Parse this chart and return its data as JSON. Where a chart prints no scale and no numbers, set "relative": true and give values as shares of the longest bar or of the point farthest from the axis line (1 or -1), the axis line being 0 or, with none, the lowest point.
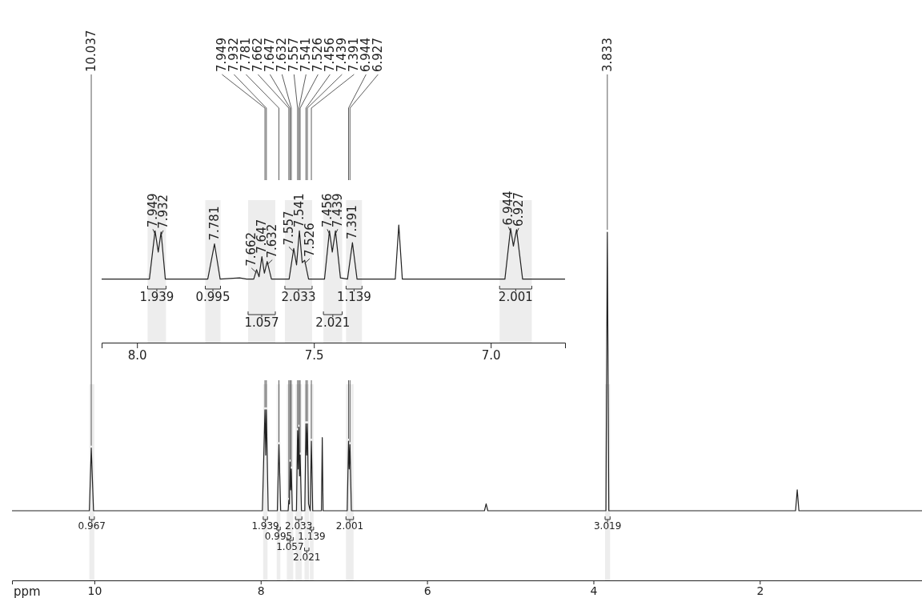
{
  "chart_data": [
    {
      "type": "line",
      "xlabel": "ppm",
      "relative": true,
      "color": "#222222",
      "xlim": [
        10.99,
        0.05
      ],
      "xticks": [
        10,
        8,
        6,
        4,
        2
      ],
      "x": [
        10.99,
        10.06,
        10.037,
        10.01,
        7.98,
        7.949,
        7.94,
        7.932,
        7.91,
        7.8,
        7.781,
        7.76,
        7.67,
        7.662,
        7.655,
        7.647,
        7.64,
        7.632,
        7.62,
        7.57,
        7.557,
        7.549,
        7.541,
        7.533,
        7.526,
        7.51,
        7.47,
        7.456,
        7.448,
        7.439,
        7.425,
        7.405,
        7.391,
        7.375,
        7.27,
        7.26,
        7.25,
        6.96,
        6.944,
        6.936,
        6.927,
        6.91,
        5.31,
        5.29,
        5.27,
        3.85,
        3.833,
        3.815,
        1.57,
        1.55,
        1.53,
        0.05
      ],
      "values": [
        0.2,
        0.2,
        0.38,
        0.2,
        0.2,
        0.49,
        0.36,
        0.49,
        0.2,
        0.2,
        0.39,
        0.2,
        0.2,
        0.23,
        0.22,
        0.34,
        0.26,
        0.32,
        0.2,
        0.2,
        0.43,
        0.32,
        0.44,
        0.3,
        0.36,
        0.2,
        0.2,
        0.45,
        0.36,
        0.45,
        0.22,
        0.2,
        0.4,
        0.2,
        0.2,
        0.41,
        0.2,
        0.2,
        0.4,
        0.32,
        0.39,
        0.2,
        0.2,
        0.22,
        0.2,
        0.2,
        1,
        0.2,
        0.2,
        0.26,
        0.2,
        0.2
      ],
      "annotations": [
        {
          "text": "10.037",
          "x": 10.037,
          "y": 0.38
        },
        {
          "text": "7.949",
          "x": 7.949,
          "y": 0.49
        },
        {
          "text": "7.932",
          "x": 7.932,
          "y": 0.49
        },
        {
          "text": "7.781",
          "x": 7.781,
          "y": 0.39
        },
        {
          "text": "7.662",
          "x": 7.662,
          "y": 0.23
        },
        {
          "text": "7.647",
          "x": 7.647,
          "y": 0.34
        },
        {
          "text": "7.632",
          "x": 7.632,
          "y": 0.32
        },
        {
          "text": "7.557",
          "x": 7.557,
          "y": 0.43
        },
        {
          "text": "7.541",
          "x": 7.541,
          "y": 0.44
        },
        {
          "text": "7.526",
          "x": 7.526,
          "y": 0.36
        },
        {
          "text": "7.456",
          "x": 7.456,
          "y": 0.45
        },
        {
          "text": "7.439",
          "x": 7.439,
          "y": 0.45
        },
        {
          "text": "7.391",
          "x": 7.391,
          "y": 0.4
        },
        {
          "text": "6.944",
          "x": 6.944,
          "y": 0.4
        },
        {
          "text": "6.927",
          "x": 6.927,
          "y": 0.39
        },
        {
          "text": "3.833",
          "x": 3.833,
          "y": 1
        }
      ],
      "bands": [
        {
          "axis": "x",
          "from": 10.06,
          "to": 10.0,
          "label": "0.967"
        },
        {
          "axis": "x",
          "from": 7.97,
          "to": 7.918,
          "label": "1.939"
        },
        {
          "axis": "x",
          "from": 7.807,
          "to": 7.764,
          "label": "0.995"
        },
        {
          "axis": "x",
          "from": 7.686,
          "to": 7.609,
          "label": "1.057"
        },
        {
          "axis": "x",
          "from": 7.582,
          "to": 7.505,
          "label": "2.033"
        },
        {
          "axis": "x",
          "from": 7.473,
          "to": 7.42,
          "label": "2.021"
        },
        {
          "axis": "x",
          "from": 7.409,
          "to": 7.364,
          "label": "1.139"
        },
        {
          "axis": "x",
          "from": 6.975,
          "to": 6.884,
          "label": "2.001"
        },
        {
          "axis": "x",
          "from": 3.86,
          "to": 3.8,
          "label": "3.019"
        }
      ]
    },
    {
      "type": "line",
      "relative": true,
      "color": "#222222",
      "xlim": [
        8.1,
        6.79
      ],
      "xticks": [
        {
          "value": 8.0,
          "label": "8.0"
        },
        7.5,
        {
          "value": 7.0,
          "label": "7.0"
        }
      ],
      "x": [
        8.1,
        7.965,
        7.949,
        7.94,
        7.932,
        7.92,
        7.8,
        7.781,
        7.765,
        7.71,
        7.69,
        7.67,
        7.662,
        7.655,
        7.647,
        7.64,
        7.632,
        7.62,
        7.57,
        7.557,
        7.549,
        7.541,
        7.533,
        7.526,
        7.515,
        7.47,
        7.456,
        7.448,
        7.439,
        7.425,
        7.405,
        7.391,
        7.378,
        7.27,
        7.26,
        7.25,
        6.96,
        6.944,
        6.936,
        6.927,
        6.91,
        6.79
      ],
      "values": [
        0.54,
        0.54,
        0.95,
        0.77,
        0.94,
        0.54,
        0.54,
        0.84,
        0.54,
        0.55,
        0.54,
        0.54,
        0.62,
        0.56,
        0.73,
        0.59,
        0.69,
        0.54,
        0.54,
        0.8,
        0.66,
        0.95,
        0.68,
        0.7,
        0.54,
        0.54,
        0.95,
        0.77,
        0.95,
        0.55,
        0.54,
        0.85,
        0.54,
        0.54,
        1,
        0.54,
        0.54,
        0.97,
        0.82,
        0.96,
        0.54,
        0.54
      ],
      "annotations": [
        {
          "text": "7.949",
          "x": 7.949,
          "y": 0.95
        },
        {
          "text": "7.932",
          "x": 7.932,
          "y": 0.94
        },
        {
          "text": "7.781",
          "x": 7.781,
          "y": 0.84
        },
        {
          "text": "7.662",
          "x": 7.662,
          "y": 0.62
        },
        {
          "text": "7.647",
          "x": 7.647,
          "y": 0.73
        },
        {
          "text": "7.632",
          "x": 7.632,
          "y": 0.69
        },
        {
          "text": "7.557",
          "x": 7.557,
          "y": 0.8
        },
        {
          "text": "7.541",
          "x": 7.541,
          "y": 0.95
        },
        {
          "text": "7.526",
          "x": 7.526,
          "y": 0.7
        },
        {
          "text": "7.456",
          "x": 7.456,
          "y": 0.95
        },
        {
          "text": "7.439",
          "x": 7.439,
          "y": 0.95
        },
        {
          "text": "7.391",
          "x": 7.391,
          "y": 0.85
        },
        {
          "text": "6.944",
          "x": 6.944,
          "y": 0.97
        },
        {
          "text": "6.927",
          "x": 6.927,
          "y": 0.96
        }
      ],
      "bands": [
        {
          "axis": "x",
          "from": 7.807,
          "to": 7.764,
          "label": "0.995"
        },
        {
          "axis": "x",
          "from": 7.582,
          "to": 7.505,
          "label": "2.033"
        },
        {
          "axis": "x",
          "from": 7.409,
          "to": 7.364,
          "label": "1.139"
        },
        {
          "axis": "x",
          "from": 7.97,
          "to": 7.918,
          "label": "1.939"
        },
        {
          "axis": "x",
          "from": 7.686,
          "to": 7.609,
          "label": "1.057"
        },
        {
          "axis": "x",
          "from": 7.473,
          "to": 7.42,
          "label": "2.021"
        },
        {
          "axis": "x",
          "from": 6.975,
          "to": 6.884,
          "label": "2.001"
        }
      ]
    }
  ]
}
